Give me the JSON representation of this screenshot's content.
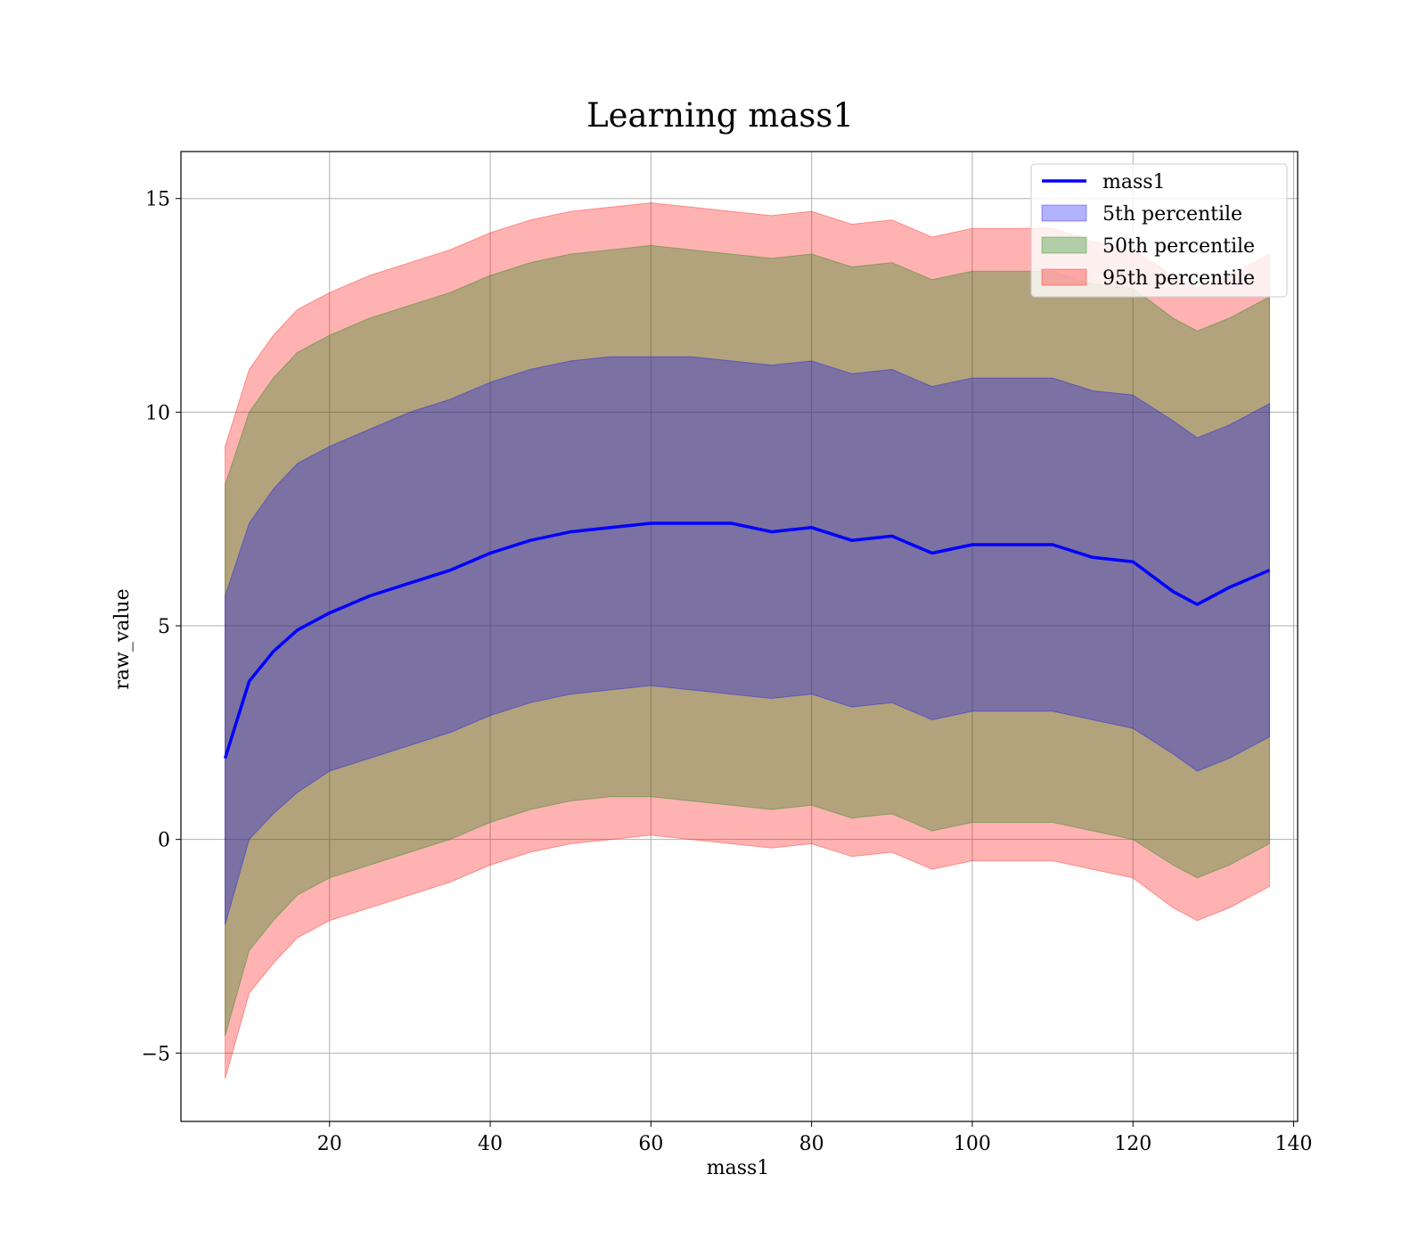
{
  "chart_data": {
    "type": "area",
    "title": "Learning mass1",
    "xlabel": "mass1",
    "ylabel": "raw_value",
    "xlim": [
      1.5,
      140.5
    ],
    "ylim": [
      -6.6,
      16.1
    ],
    "xticks": [
      20,
      40,
      60,
      80,
      100,
      120,
      140
    ],
    "yticks": [
      -5,
      0,
      5,
      10,
      15
    ],
    "xtick_labels": [
      "20",
      "40",
      "60",
      "80",
      "100",
      "120",
      "140"
    ],
    "ytick_labels": [
      "−5",
      "0",
      "5",
      "10",
      "15"
    ],
    "grid": true,
    "legend_position": "top-right",
    "x": [
      7,
      10,
      13,
      16,
      20,
      25,
      30,
      35,
      40,
      45,
      50,
      55,
      60,
      65,
      70,
      75,
      80,
      85,
      90,
      95,
      100,
      105,
      110,
      115,
      120,
      125,
      128,
      132,
      137
    ],
    "series": [
      {
        "name": "mass1",
        "kind": "line",
        "color": "#0000ff",
        "values": [
          1.9,
          3.7,
          4.4,
          4.9,
          5.3,
          5.7,
          6.0,
          6.3,
          6.7,
          7.0,
          7.2,
          7.3,
          7.4,
          7.4,
          7.4,
          7.2,
          7.3,
          7.0,
          7.1,
          6.7,
          6.9,
          6.9,
          6.9,
          6.6,
          6.5,
          5.8,
          5.5,
          5.9,
          6.3
        ]
      },
      {
        "name": "5th percentile",
        "kind": "band",
        "color": "#0000ff",
        "lower": [
          -2.0,
          0.0,
          0.6,
          1.1,
          1.6,
          1.9,
          2.2,
          2.5,
          2.9,
          3.2,
          3.4,
          3.5,
          3.6,
          3.5,
          3.4,
          3.3,
          3.4,
          3.1,
          3.2,
          2.8,
          3.0,
          3.0,
          3.0,
          2.8,
          2.6,
          2.0,
          1.6,
          1.9,
          2.4
        ],
        "upper": [
          5.7,
          7.4,
          8.2,
          8.8,
          9.2,
          9.6,
          10.0,
          10.3,
          10.7,
          11.0,
          11.2,
          11.3,
          11.3,
          11.3,
          11.2,
          11.1,
          11.2,
          10.9,
          11.0,
          10.6,
          10.8,
          10.8,
          10.8,
          10.5,
          10.4,
          9.8,
          9.4,
          9.7,
          10.2
        ]
      },
      {
        "name": "50th percentile",
        "kind": "band",
        "color": "#008000",
        "lower": [
          -4.6,
          -2.6,
          -1.9,
          -1.3,
          -0.9,
          -0.6,
          -0.3,
          0.0,
          0.4,
          0.7,
          0.9,
          1.0,
          1.0,
          0.9,
          0.8,
          0.7,
          0.8,
          0.5,
          0.6,
          0.2,
          0.4,
          0.4,
          0.4,
          0.2,
          0.0,
          -0.6,
          -0.9,
          -0.6,
          -0.1
        ],
        "upper": [
          8.3,
          10.0,
          10.8,
          11.4,
          11.8,
          12.2,
          12.5,
          12.8,
          13.2,
          13.5,
          13.7,
          13.8,
          13.9,
          13.8,
          13.7,
          13.6,
          13.7,
          13.4,
          13.5,
          13.1,
          13.3,
          13.3,
          13.3,
          13.0,
          12.9,
          12.2,
          11.9,
          12.2,
          12.7
        ]
      },
      {
        "name": "95th percentile",
        "kind": "band",
        "color": "#ff0000",
        "lower": [
          -5.6,
          -3.6,
          -2.9,
          -2.3,
          -1.9,
          -1.6,
          -1.3,
          -1.0,
          -0.6,
          -0.3,
          -0.1,
          0.0,
          0.1,
          0.0,
          -0.1,
          -0.2,
          -0.1,
          -0.4,
          -0.3,
          -0.7,
          -0.5,
          -0.5,
          -0.5,
          -0.7,
          -0.9,
          -1.6,
          -1.9,
          -1.6,
          -1.1
        ],
        "upper": [
          9.2,
          11.0,
          11.8,
          12.4,
          12.8,
          13.2,
          13.5,
          13.8,
          14.2,
          14.5,
          14.7,
          14.8,
          14.9,
          14.8,
          14.7,
          14.6,
          14.7,
          14.4,
          14.5,
          14.1,
          14.3,
          14.3,
          14.3,
          14.0,
          13.8,
          13.2,
          12.9,
          13.2,
          13.7
        ]
      }
    ]
  }
}
